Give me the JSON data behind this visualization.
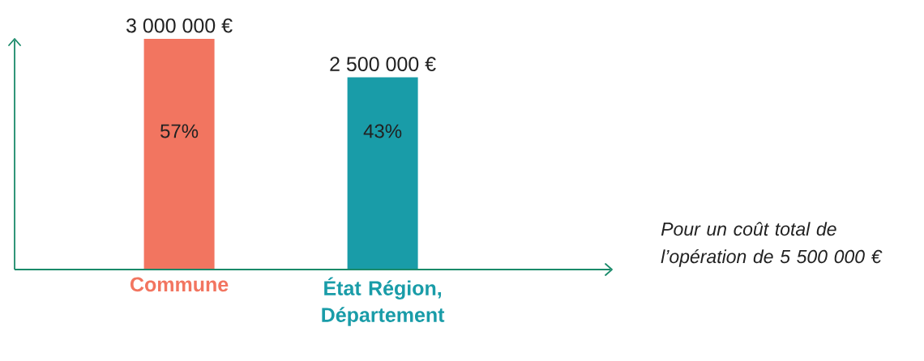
{
  "chart_data": {
    "type": "bar",
    "categories": [
      "Commune",
      "État Région, Département"
    ],
    "values": [
      3000000,
      2500000
    ],
    "colors": [
      "#f27560",
      "#199ca8"
    ],
    "value_labels": [
      "3 000 000 €",
      "2 500 000 €"
    ],
    "ylim": [
      0,
      3000000
    ],
    "annotations": [
      "57%",
      "43%",
      "Pour un coût total de l’opération de 5 500 000 €"
    ]
  }
}
